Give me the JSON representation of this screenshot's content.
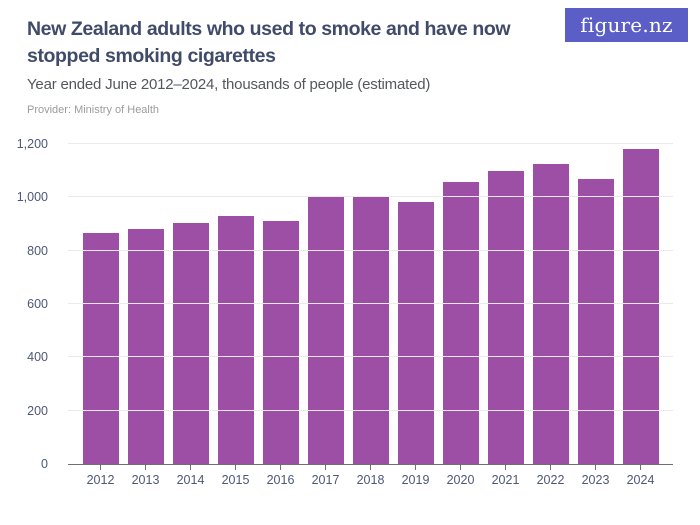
{
  "header": {
    "title": "New Zealand adults who used to smoke and have now stopped smoking cigarettes",
    "subtitle": "Year ended June 2012–2024, thousands of people (estimated)",
    "provider": "Provider: Ministry of Health"
  },
  "brand": {
    "logo_text": "figure.nz",
    "logo_bg": "#5a5ec6",
    "logo_text_color": "#ffffff"
  },
  "colors": {
    "background": "#ffffff",
    "bar": "#9c4fa5",
    "title_text": "#3f4b68",
    "subtitle_text": "#54575e",
    "provider_text": "#9c9c9c",
    "axis_label_text": "#4d5878",
    "gridline": "#eaeaea",
    "axis_line": "#707070"
  },
  "chart_data": {
    "type": "bar",
    "title": "New Zealand adults who used to smoke and have now stopped smoking cigarettes",
    "subtitle": "Year ended June 2012–2024, thousands of people (estimated)",
    "categories": [
      "2012",
      "2013",
      "2014",
      "2015",
      "2016",
      "2017",
      "2018",
      "2019",
      "2020",
      "2021",
      "2022",
      "2023",
      "2024"
    ],
    "values": [
      865,
      883,
      903,
      932,
      913,
      1002,
      1006,
      983,
      1058,
      1100,
      1127,
      1069,
      1180
    ],
    "xlabel": "",
    "ylabel": "thousands of people",
    "ylim": [
      0,
      1200
    ],
    "ytick_step": 200,
    "ytick_labels": [
      "0",
      "200",
      "400",
      "600",
      "800",
      "1,000",
      "1,200"
    ],
    "grid": true,
    "legend": "none",
    "bar_color": "#9c4fa5"
  }
}
